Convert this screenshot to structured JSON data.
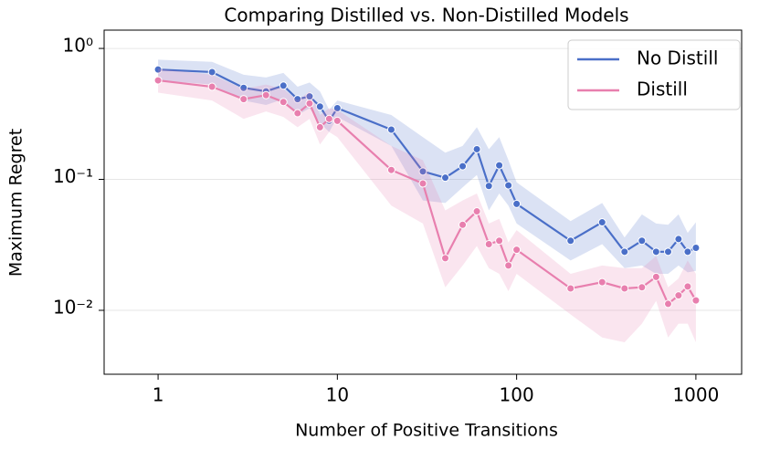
{
  "chart_data": {
    "type": "line",
    "title": "Comparing Distilled vs. Non-Distilled Models",
    "xlabel": "Number of Positive Transitions",
    "ylabel": "Maximum Regret",
    "xscale": "log",
    "yscale": "log",
    "grid": true,
    "legend": "upper right",
    "xlim": [
      0.5,
      1800
    ],
    "ylim": [
      0.00325,
      1.38
    ],
    "xticks": [
      1,
      10,
      100,
      1000
    ],
    "yticks": [
      {
        "value": 1,
        "label": "10⁰"
      },
      {
        "value": 0.1,
        "label": "10⁻¹"
      },
      {
        "value": 0.01,
        "label": "10⁻²"
      }
    ],
    "x": [
      1,
      2,
      3,
      4,
      5,
      6,
      7,
      8,
      9,
      10,
      20,
      30,
      40,
      50,
      60,
      70,
      80,
      90,
      100,
      200,
      300,
      400,
      500,
      600,
      700,
      800,
      900,
      1000
    ],
    "series": [
      {
        "name": "No Distill",
        "color": "#4a6fc8",
        "values": [
          0.69,
          0.66,
          0.5,
          0.47,
          0.52,
          0.41,
          0.43,
          0.36,
          0.28,
          0.35,
          0.24,
          0.115,
          0.103,
          0.126,
          0.17,
          0.089,
          0.128,
          0.09,
          0.065,
          0.034,
          0.047,
          0.028,
          0.034,
          0.028,
          0.028,
          0.035,
          0.028,
          0.03
        ],
        "upper": [
          0.82,
          0.79,
          0.63,
          0.6,
          0.65,
          0.51,
          0.55,
          0.47,
          0.34,
          0.4,
          0.31,
          0.21,
          0.16,
          0.18,
          0.25,
          0.17,
          0.21,
          0.14,
          0.095,
          0.048,
          0.066,
          0.036,
          0.054,
          0.046,
          0.045,
          0.054,
          0.039,
          0.047
        ],
        "lower": [
          0.57,
          0.53,
          0.4,
          0.37,
          0.41,
          0.31,
          0.35,
          0.27,
          0.23,
          0.3,
          0.18,
          0.069,
          0.066,
          0.087,
          0.108,
          0.058,
          0.078,
          0.063,
          0.046,
          0.024,
          0.032,
          0.021,
          0.022,
          0.019,
          0.019,
          0.022,
          0.0195,
          0.02
        ]
      },
      {
        "name": "Distill",
        "color": "#e87fae",
        "values": [
          0.57,
          0.51,
          0.41,
          0.44,
          0.39,
          0.32,
          0.38,
          0.25,
          0.29,
          0.28,
          0.118,
          0.093,
          0.025,
          0.045,
          0.057,
          0.032,
          0.034,
          0.022,
          0.029,
          0.0147,
          0.0164,
          0.0147,
          0.015,
          0.018,
          0.0112,
          0.013,
          0.0152,
          0.0119
        ],
        "upper": [
          0.7,
          0.63,
          0.49,
          0.53,
          0.49,
          0.4,
          0.47,
          0.31,
          0.35,
          0.34,
          0.18,
          0.14,
          0.058,
          0.069,
          0.078,
          0.046,
          0.05,
          0.033,
          0.041,
          0.019,
          0.022,
          0.021,
          0.021,
          0.026,
          0.015,
          0.0175,
          0.024,
          0.019
        ],
        "lower": [
          0.46,
          0.4,
          0.29,
          0.33,
          0.3,
          0.25,
          0.29,
          0.185,
          0.23,
          0.21,
          0.063,
          0.046,
          0.015,
          0.022,
          0.031,
          0.021,
          0.019,
          0.014,
          0.019,
          0.0093,
          0.0062,
          0.0057,
          0.0079,
          0.0118,
          0.0062,
          0.0079,
          0.0079,
          0.0057
        ]
      }
    ]
  }
}
